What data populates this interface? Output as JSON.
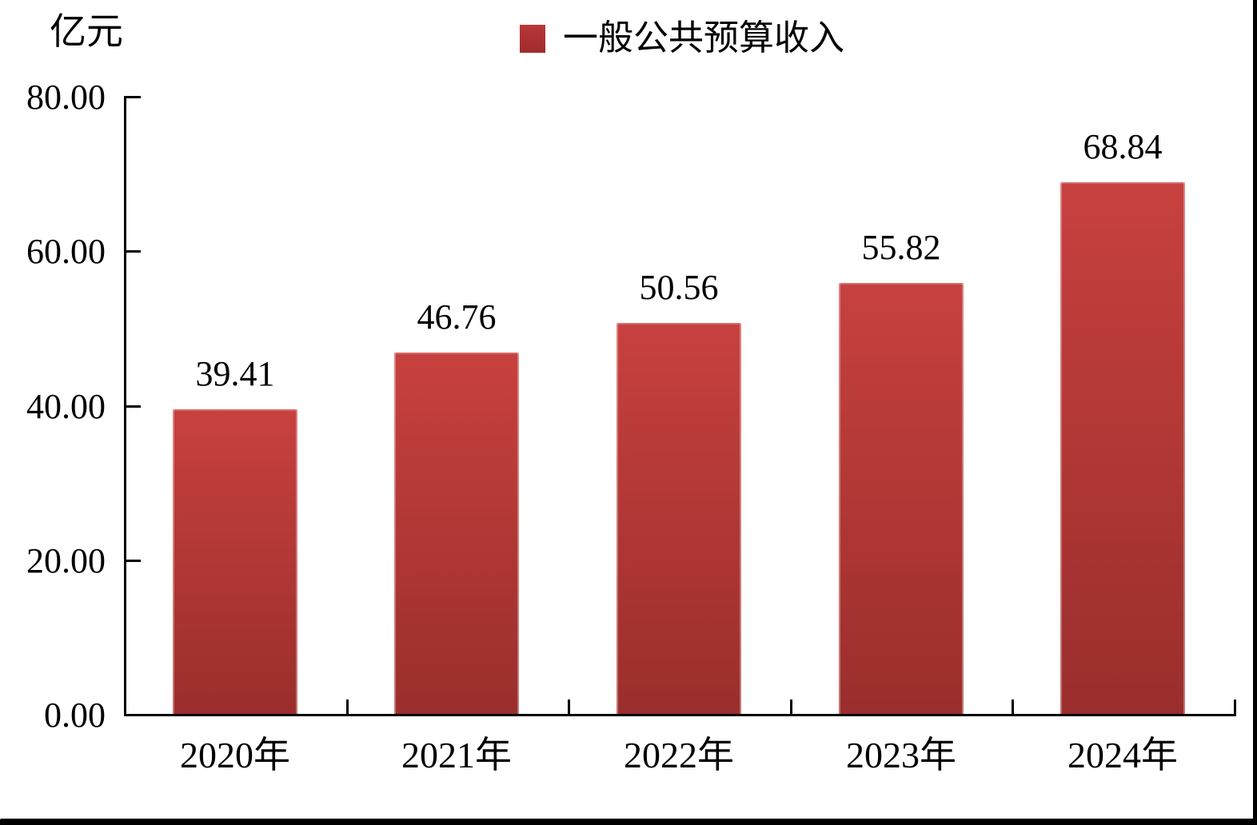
{
  "frame": {
    "bottom_bar_color": "#000000",
    "right_edge_color": "#000000",
    "background_color": "#ffffff"
  },
  "chart_data": {
    "type": "bar",
    "title": "",
    "unit_label": "亿元",
    "legend": [
      {
        "label": "一般公共预算收入",
        "color": "#b23335"
      }
    ],
    "legend_position": "top",
    "categories": [
      "2020年",
      "2021年",
      "2022年",
      "2023年",
      "2024年"
    ],
    "series": [
      {
        "name": "一般公共预算收入",
        "values": [
          39.41,
          46.76,
          50.56,
          55.82,
          68.84
        ]
      }
    ],
    "value_labels": [
      "39.41",
      "46.76",
      "50.56",
      "55.82",
      "68.84"
    ],
    "xlabel": "",
    "ylabel": "亿元",
    "ylim": [
      0,
      80
    ],
    "ytick_interval": 20,
    "ytick_labels": [
      "80.00",
      "60.00",
      "40.00",
      "20.00",
      "0.00"
    ],
    "grid": false,
    "bar_color_top": "#c7413f",
    "bar_color_bottom": "#9a2e2c",
    "axis_color": "#000000",
    "text_color": "#000000"
  }
}
